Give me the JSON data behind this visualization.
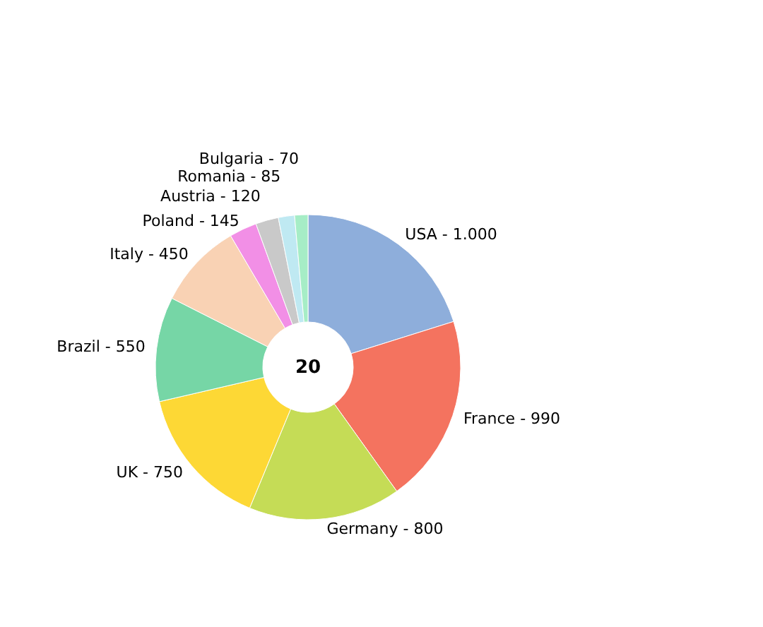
{
  "chart_data": {
    "type": "donut",
    "categories": [
      "USA",
      "France",
      "Germany",
      "UK",
      "Brazil",
      "Italy",
      "Poland",
      "Austria",
      "Romania",
      "Bulgaria"
    ],
    "values": [
      1000,
      990,
      800,
      750,
      550,
      450,
      145,
      120,
      85,
      70
    ],
    "value_labels": [
      "1.000",
      "990",
      "800",
      "750",
      "550",
      "450",
      "145",
      "120",
      "85",
      "70"
    ],
    "colors": [
      "#8eaedb",
      "#f4735f",
      "#c5dc56",
      "#fdd835",
      "#76d6a6",
      "#f9d2b4",
      "#f28fe6",
      "#c9c9c9",
      "#bfe9f2",
      "#a6edc6"
    ],
    "annotations": [
      "20"
    ]
  }
}
